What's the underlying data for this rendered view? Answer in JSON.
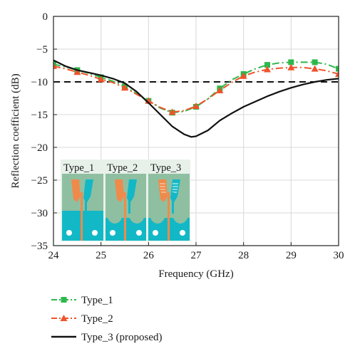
{
  "colors": {
    "type1": "#2db84a",
    "type2": "#f0522a",
    "type3": "#111111",
    "threshold": "#111111",
    "inset_board": "#8fbfa1",
    "inset_ground": "#13b8c6",
    "inset_patch": "#f08a4b",
    "inset_feed": "#0fb0c8",
    "inset_label_bg": "#e7f1ea"
  },
  "chart_data": {
    "type": "line",
    "xlabel": "Frequency (GHz)",
    "ylabel": "Reflection coefficient (dB)",
    "xlim": [
      24,
      30
    ],
    "ylim": [
      -35,
      0
    ],
    "xticks": [
      24,
      25,
      26,
      27,
      28,
      29,
      30
    ],
    "yticks": [
      0,
      -5,
      -10,
      -15,
      -20,
      -25,
      -30,
      -35
    ],
    "grid": true,
    "threshold_db": -10,
    "legend_position": "below",
    "series": [
      {
        "name": "Type_1",
        "style": "dash-dot",
        "marker": "square",
        "color_key": "type1",
        "x": [
          24.0,
          24.25,
          24.5,
          24.75,
          25.0,
          25.25,
          25.5,
          25.75,
          26.0,
          26.25,
          26.5,
          26.75,
          27.0,
          27.25,
          27.5,
          27.75,
          28.0,
          28.25,
          28.5,
          28.75,
          29.0,
          29.25,
          29.5,
          29.75,
          30.0
        ],
        "y": [
          -7.3,
          -7.7,
          -8.2,
          -8.7,
          -9.3,
          -9.9,
          -10.7,
          -11.8,
          -12.9,
          -14.0,
          -14.7,
          -14.5,
          -13.8,
          -12.6,
          -11.0,
          -9.7,
          -8.8,
          -8.0,
          -7.4,
          -7.1,
          -7.0,
          -7.0,
          -7.0,
          -7.3,
          -8.0
        ],
        "marker_x": [
          24.0,
          24.5,
          25.0,
          25.5,
          26.0,
          26.5,
          27.0,
          27.5,
          28.0,
          28.5,
          29.0,
          29.5,
          30.0
        ],
        "marker_y": [
          -7.3,
          -8.2,
          -9.3,
          -10.7,
          -12.9,
          -14.7,
          -13.8,
          -11.0,
          -8.8,
          -7.4,
          -7.0,
          -7.0,
          -8.0
        ]
      },
      {
        "name": "Type_2",
        "style": "dash-dot",
        "marker": "triangle",
        "color_key": "type2",
        "x": [
          24.0,
          24.25,
          24.5,
          24.75,
          25.0,
          25.25,
          25.5,
          25.75,
          26.0,
          26.25,
          26.5,
          26.75,
          27.0,
          27.25,
          27.5,
          27.75,
          28.0,
          28.25,
          28.5,
          28.75,
          29.0,
          29.25,
          29.5,
          29.75,
          30.0
        ],
        "y": [
          -7.6,
          -8.0,
          -8.5,
          -9.0,
          -9.6,
          -10.1,
          -10.9,
          -11.9,
          -12.9,
          -13.9,
          -14.6,
          -14.4,
          -13.7,
          -12.6,
          -11.3,
          -10.1,
          -9.1,
          -8.5,
          -8.1,
          -7.9,
          -7.8,
          -7.8,
          -8.0,
          -8.3,
          -8.8
        ],
        "marker_x": [
          24.0,
          24.5,
          25.0,
          25.5,
          26.0,
          26.5,
          27.0,
          27.5,
          28.0,
          28.5,
          29.0,
          29.5,
          30.0
        ],
        "marker_y": [
          -7.6,
          -8.5,
          -9.6,
          -10.9,
          -12.9,
          -14.6,
          -13.7,
          -11.3,
          -9.1,
          -8.1,
          -7.8,
          -8.0,
          -8.8
        ]
      },
      {
        "name": "Type_3 (proposed)",
        "style": "solid",
        "marker": "none",
        "color_key": "type3",
        "x": [
          24.0,
          24.25,
          24.5,
          24.75,
          25.0,
          25.25,
          25.5,
          25.75,
          26.0,
          26.25,
          26.5,
          26.75,
          26.9,
          27.0,
          27.25,
          27.5,
          27.75,
          28.0,
          28.25,
          28.5,
          28.75,
          29.0,
          29.25,
          29.5,
          29.75,
          30.0
        ],
        "y": [
          -6.7,
          -7.6,
          -8.2,
          -8.6,
          -9.0,
          -9.5,
          -10.2,
          -11.5,
          -13.2,
          -15.0,
          -16.8,
          -18.0,
          -18.4,
          -18.3,
          -17.4,
          -15.9,
          -14.8,
          -13.8,
          -13.0,
          -12.2,
          -11.5,
          -10.9,
          -10.4,
          -10.0,
          -9.7,
          -9.5
        ]
      }
    ],
    "inset_labels": [
      "Type_1",
      "Type_2",
      "Type_3"
    ]
  }
}
